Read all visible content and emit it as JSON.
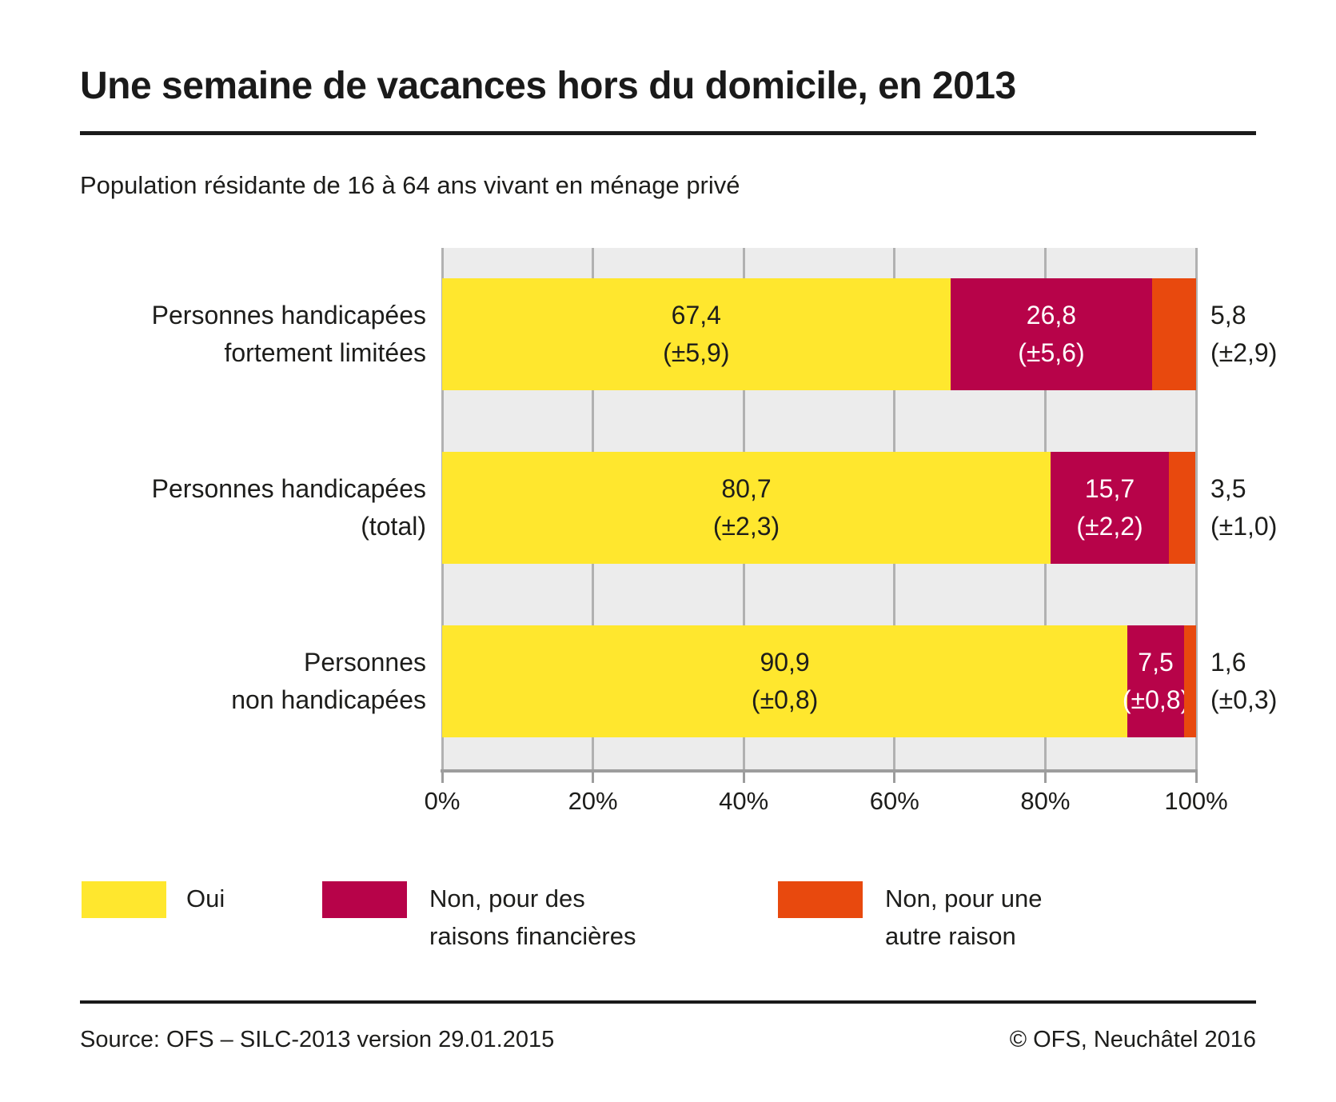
{
  "header": {
    "title": "Une semaine de vacances hors du domicile, en 2013",
    "subtitle": "Population résidante de 16 à 64 ans vivant en ménage privé"
  },
  "chart_data": {
    "type": "bar",
    "orientation": "horizontal",
    "stacked": true,
    "title": "Une semaine de vacances hors du domicile, en 2013",
    "subtitle": "Population résidante de 16 à 64 ans vivant en ménage privé",
    "unit": "%",
    "xlim": [
      0,
      100
    ],
    "xticks": [
      "0%",
      "20%",
      "40%",
      "60%",
      "80%",
      "100%"
    ],
    "grid": "vertical",
    "legend_position": "bottom",
    "categories": [
      "Personnes handicapées fortement limitées",
      "Personnes handicapées (total)",
      "Personnes non handicapées"
    ],
    "series": [
      {
        "name": "Oui",
        "color": "#ffe72e",
        "values": [
          67.4,
          80.7,
          90.9
        ],
        "ci": [
          5.9,
          2.3,
          0.8
        ]
      },
      {
        "name": "Non, pour des raisons financières",
        "color": "#b70349",
        "values": [
          26.8,
          15.7,
          7.5
        ],
        "ci": [
          5.6,
          2.2,
          0.8
        ]
      },
      {
        "name": "Non, pour une autre raison",
        "color": "#e8490e",
        "values": [
          5.8,
          3.5,
          1.6
        ],
        "ci": [
          2.9,
          1.0,
          0.3
        ]
      }
    ],
    "rows": [
      {
        "category_lines": [
          "Personnes handicapées",
          "fortement limitées"
        ],
        "segments": [
          {
            "series": 0,
            "value": 67.4,
            "label": "67,4",
            "ci_label": "(±5,9)",
            "text": "dark"
          },
          {
            "series": 1,
            "value": 26.8,
            "label": "26,8",
            "ci_label": "(±5,6)",
            "text": "white"
          },
          {
            "series": 2,
            "value": 5.8
          }
        ],
        "outside_label": {
          "label": "5,8",
          "ci_label": "(±2,9)"
        }
      },
      {
        "category_lines": [
          "Personnes handicapées",
          "(total)"
        ],
        "segments": [
          {
            "series": 0,
            "value": 80.7,
            "label": "80,7",
            "ci_label": "(±2,3)",
            "text": "dark"
          },
          {
            "series": 1,
            "value": 15.7,
            "label": "15,7",
            "ci_label": "(±2,2)",
            "text": "white"
          },
          {
            "series": 2,
            "value": 3.5
          }
        ],
        "outside_label": {
          "label": "3,5",
          "ci_label": "(±1,0)"
        }
      },
      {
        "category_lines": [
          "Personnes",
          "non handicapées"
        ],
        "segments": [
          {
            "series": 0,
            "value": 90.9,
            "label": "90,9",
            "ci_label": "(±0,8)",
            "text": "dark"
          },
          {
            "series": 1,
            "value": 7.5,
            "label": "7,5",
            "ci_label": "(±0,8)",
            "text": "white"
          },
          {
            "series": 2,
            "value": 1.6
          }
        ],
        "outside_label": {
          "label": "1,6",
          "ci_label": "(±0,3)"
        }
      }
    ]
  },
  "legend": {
    "items": [
      {
        "lines": [
          "Oui"
        ],
        "color": "#ffe72e"
      },
      {
        "lines": [
          "Non, pour des",
          "raisons financières"
        ],
        "color": "#b70349"
      },
      {
        "lines": [
          "Non, pour une",
          "autre raison"
        ],
        "color": "#e8490e"
      }
    ]
  },
  "footer": {
    "source": "Source: OFS – SILC-2013 version 29.01.2015",
    "copyright": "© OFS, Neuchâtel 2016"
  },
  "colors": {
    "plot_background": "#ececec",
    "gridline": "#b1b1b1",
    "axis": "#9d9d9d",
    "text": "#1d1d1b",
    "bar_label_light": "#ffffff"
  }
}
